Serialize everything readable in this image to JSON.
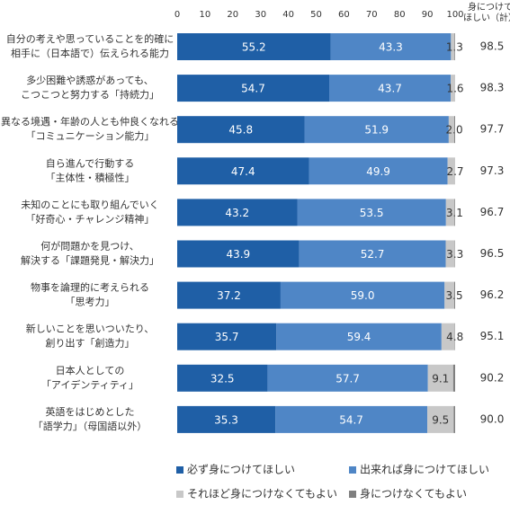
{
  "chart_data": {
    "type": "stacked-bar-horizontal",
    "categories": [
      [
        "自分の考えや思っていることを的確に",
        "相手に（日本語で）伝えられる能力"
      ],
      [
        "多少困難や誘惑があっても、",
        "こつこつと努力する「持続力」"
      ],
      [
        "異なる境遇・年齢の人とも仲良くなれる",
        "「コミュニケーション能力」"
      ],
      [
        "自ら進んで行動する",
        "「主体性・積極性」"
      ],
      [
        "未知のことにも取り組んでいく",
        "「好奇心・チャレンジ精神」"
      ],
      [
        "何が問題かを見つけ、",
        "解決する「課題発見・解決力」"
      ],
      [
        "物事を論理的に考えられる",
        "「思考力」"
      ],
      [
        "新しいことを思いついたり、",
        "創り出す「創造力」"
      ],
      [
        "日本人としての",
        "「アイデンティティ」"
      ],
      [
        "英語をはじめとした",
        "「語学力」（母国語以外）"
      ]
    ],
    "series": [
      {
        "name": "必ず身につけてほしい",
        "color": "#1f5fa6",
        "label_color": "#ffffff",
        "values": [
          55.2,
          54.7,
          45.8,
          47.4,
          43.2,
          43.9,
          37.2,
          35.7,
          32.5,
          35.3
        ],
        "value_labels": [
          "55.2",
          "54.7",
          "45.8",
          "47.4",
          "43.2",
          "43.9",
          "37.2",
          "35.7",
          "32.5",
          "35.3"
        ]
      },
      {
        "name": "出来れば身につけてほしい",
        "color": "#4f86c6",
        "label_color": "#ffffff",
        "values": [
          43.3,
          43.7,
          51.9,
          49.9,
          53.5,
          52.7,
          59.0,
          59.4,
          57.7,
          54.7
        ],
        "value_labels": [
          "43.3",
          "43.7",
          "51.9",
          "49.9",
          "53.5",
          "52.7",
          "59.0",
          "59.4",
          "57.7",
          "54.7"
        ]
      },
      {
        "name": "それほど身につけなくてもよい",
        "color": "#c8c8c8",
        "label_color": "#333333",
        "values": [
          1.3,
          1.6,
          2.0,
          2.7,
          3.1,
          3.3,
          3.5,
          4.8,
          9.1,
          9.5
        ],
        "value_labels": [
          "1.3",
          "1.6",
          "2.0",
          "2.7",
          "3.1",
          "3.3",
          "3.5",
          "4.8",
          "9.1",
          "9.5"
        ]
      },
      {
        "name": "身につけなくてもよい",
        "color": "#7f7f7f",
        "values": [
          0.2,
          0.0,
          0.3,
          0.0,
          0.2,
          0.1,
          0.3,
          0.1,
          0.7,
          0.5
        ]
      }
    ],
    "totals": {
      "label": [
        "身につけて",
        "ほしい（計）"
      ],
      "values": [
        98.5,
        98.3,
        97.7,
        97.3,
        96.7,
        96.5,
        96.2,
        95.1,
        90.2,
        90.0
      ],
      "value_labels": [
        "98.5",
        "98.3",
        "97.7",
        "97.3",
        "96.7",
        "96.5",
        "96.2",
        "95.1",
        "90.2",
        "90.0"
      ]
    },
    "xlim": [
      0,
      100
    ],
    "xticks": [
      0,
      10,
      20,
      30,
      40,
      50,
      60,
      70,
      80,
      90,
      100
    ],
    "grid": false
  }
}
